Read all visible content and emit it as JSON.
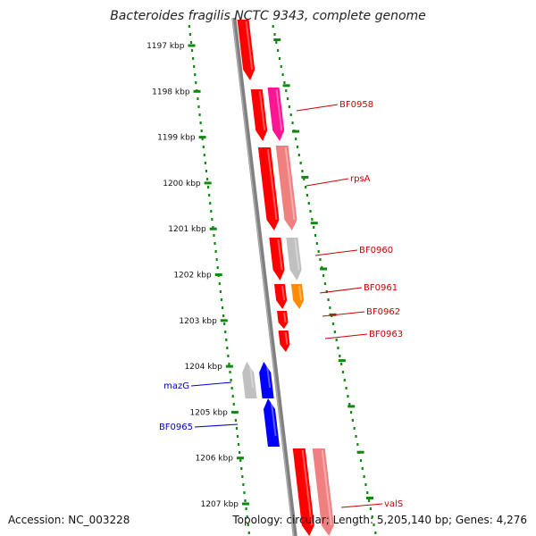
{
  "title": "Bacteroides fragilis NCTC 9343, complete genome",
  "footer": {
    "accession": "Accession: NC_003228",
    "topology": "Topology: circular; Length: 5,205,140 bp; Genes: 4,276"
  },
  "colors": {
    "ruler_ticks": "#118811",
    "backbone": "#808080",
    "red": "#ff0000",
    "light_red": "#f08080",
    "magenta": "#ff1493",
    "grey": "#c0c0c0",
    "orange": "#ff8c00",
    "blue": "#0000ff",
    "label_red": "#cc0000",
    "label_blue": "#0000cc"
  },
  "ruler": [
    {
      "label": "1197 kbp",
      "kbp": 1197
    },
    {
      "label": "1198 kbp",
      "kbp": 1198
    },
    {
      "label": "1199 kbp",
      "kbp": 1199
    },
    {
      "label": "1200 kbp",
      "kbp": 1200
    },
    {
      "label": "1201 kbp",
      "kbp": 1201
    },
    {
      "label": "1202 kbp",
      "kbp": 1202
    },
    {
      "label": "1203 kbp",
      "kbp": 1203
    },
    {
      "label": "1204 kbp",
      "kbp": 1204
    },
    {
      "label": "1205 kbp",
      "kbp": 1205
    },
    {
      "label": "1206 kbp",
      "kbp": 1206
    },
    {
      "label": "1207 kbp",
      "kbp": 1207
    }
  ],
  "gene_labels": [
    {
      "name": "BF0958",
      "strand": "plus"
    },
    {
      "name": "rpsA",
      "strand": "plus"
    },
    {
      "name": "BF0960",
      "strand": "plus"
    },
    {
      "name": "BF0961",
      "strand": "plus"
    },
    {
      "name": "BF0962",
      "strand": "plus"
    },
    {
      "name": "BF0963",
      "strand": "plus"
    },
    {
      "name": "mazG",
      "strand": "minus"
    },
    {
      "name": "BF0965",
      "strand": "minus"
    },
    {
      "name": "valS",
      "strand": "plus"
    }
  ]
}
